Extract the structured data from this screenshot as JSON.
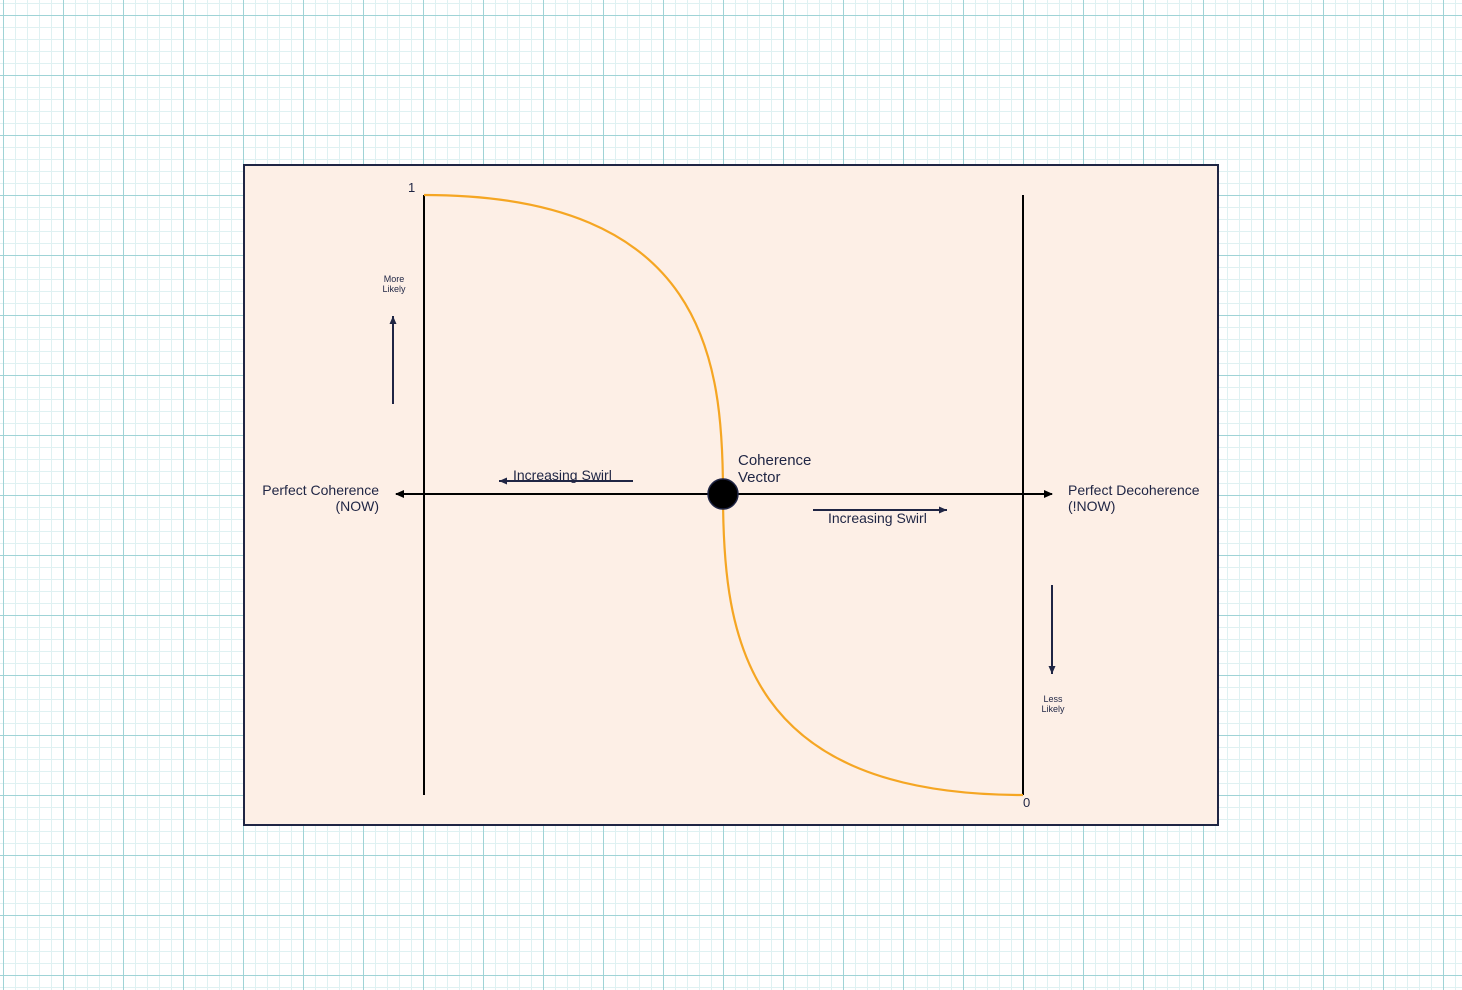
{
  "diagram": {
    "axis_top_value": "1",
    "axis_bottom_value": "0",
    "more_likely": [
      "More",
      "Likely"
    ],
    "less_likely": [
      "Less",
      "Likely"
    ],
    "left_endpoint": [
      "Perfect Coherence",
      "(NOW)"
    ],
    "right_endpoint": [
      "Perfect Decoherence",
      "(!NOW)"
    ],
    "center_node": [
      "Coherence",
      "Vector"
    ],
    "left_swirl_label": "Increasing Swirl",
    "right_swirl_label": "Increasing Swirl"
  },
  "colors": {
    "panel_fill": "#fdefe6",
    "panel_border": "#1f2544",
    "curve": "#f5a623",
    "axis": "#000000",
    "arrow": "#1f2544",
    "node": "#000000"
  }
}
